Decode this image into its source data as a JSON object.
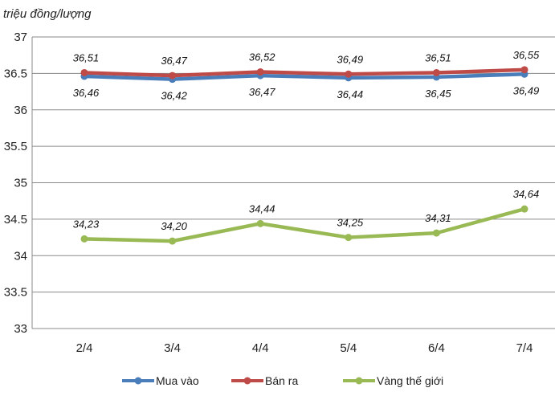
{
  "chart_data": {
    "type": "line",
    "ylabel": "triệu đồng/lượng",
    "categories": [
      "2/4",
      "3/4",
      "4/4",
      "5/4",
      "6/4",
      "7/4"
    ],
    "ylim": [
      33,
      37
    ],
    "yticks": [
      "33",
      "33.5",
      "34",
      "34.5",
      "35",
      "35.5",
      "36",
      "36.5",
      "37"
    ],
    "grid": true,
    "legend": "bottom",
    "series": [
      {
        "name": "Mua vào",
        "color": "#4a7ebb",
        "values": [
          36.46,
          36.42,
          36.47,
          36.44,
          36.45,
          36.49
        ],
        "labels": [
          "36,46",
          "36,42",
          "36,47",
          "36,44",
          "36,45",
          "36,49"
        ],
        "label_pos": "below"
      },
      {
        "name": "Bán ra",
        "color": "#be4b48",
        "values": [
          36.51,
          36.47,
          36.52,
          36.49,
          36.51,
          36.55
        ],
        "labels": [
          "36,51",
          "36,47",
          "36,52",
          "36,49",
          "36,51",
          "36,55"
        ],
        "label_pos": "above"
      },
      {
        "name": "Vàng thế giới",
        "color": "#98b954",
        "values": [
          34.23,
          34.2,
          34.44,
          34.25,
          34.31,
          34.64
        ],
        "labels": [
          "34,23",
          "34,20",
          "34,44",
          "34,25",
          "34,31",
          "34,64"
        ],
        "label_pos": "above"
      }
    ]
  }
}
